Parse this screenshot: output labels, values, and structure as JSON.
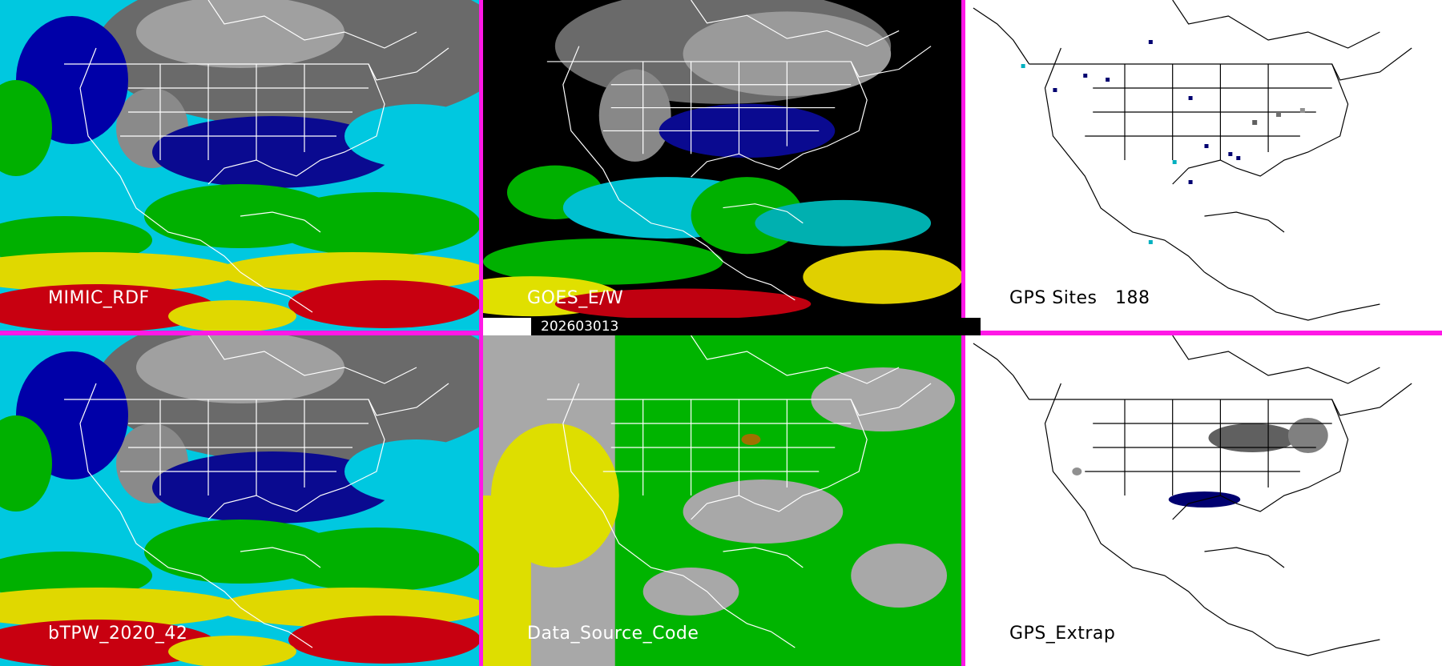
{
  "panels": [
    {
      "id": "mimic",
      "label": "MIMIC_RDF"
    },
    {
      "id": "goes",
      "label": "GOES_E/W"
    },
    {
      "id": "gps_sites",
      "label": "GPS Sites",
      "count": "188"
    },
    {
      "id": "btpw",
      "label": "bTPW_2020_42"
    },
    {
      "id": "dsc",
      "label": "Data_Source_Code"
    },
    {
      "id": "gps_extrap",
      "label": "GPS_Extrap"
    }
  ],
  "timestamp": "202603013",
  "colors": {
    "divider": "#ff18e6",
    "tpw_scale": [
      "#d00010",
      "#e8e000",
      "#00b000",
      "#00d8e8",
      "#0000b0",
      "#808080"
    ],
    "dsc_gps": "#00b400",
    "dsc_sat": "#dede00",
    "dsc_none": "#a8a8a8"
  }
}
